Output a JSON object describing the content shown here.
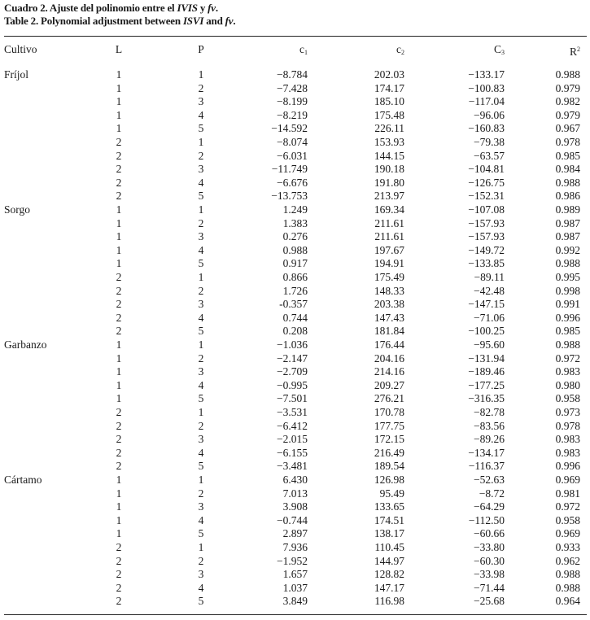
{
  "caption_es": [
    "Cuadro 2. Ajuste del polinomio entre el ",
    "IVIS",
    " y ",
    "fv",
    "."
  ],
  "caption_en": [
    "Table 2. Polynomial adjustment between ",
    "ISVI",
    " and ",
    "fv",
    "."
  ],
  "headers": {
    "cultivo": "Cultivo",
    "l": "L",
    "p": "P",
    "c1": {
      "base": "c",
      "sub": "1"
    },
    "c2": {
      "base": "c",
      "sub": "2"
    },
    "c3": {
      "base": "C",
      "sub": "3"
    },
    "r2": {
      "base": "R",
      "sup": "2"
    }
  },
  "groups": [
    {
      "crop": "Fríjol",
      "rows": [
        [
          "1",
          "1",
          "−8.784",
          "202.03",
          "−133.17",
          "0.988"
        ],
        [
          "1",
          "2",
          "−7.428",
          "174.17",
          "−100.83",
          "0.979"
        ],
        [
          "1",
          "3",
          "−8.199",
          "185.10",
          "−117.04",
          "0.982"
        ],
        [
          "1",
          "4",
          "−8.219",
          "175.48",
          "−96.06",
          "0.979"
        ],
        [
          "1",
          "5",
          "−14.592",
          "226.11",
          "−160.83",
          "0.967"
        ],
        [
          "2",
          "1",
          "−8.074",
          "153.93",
          "−79.38",
          "0.978"
        ],
        [
          "2",
          "2",
          "−6.031",
          "144.15",
          "−63.57",
          "0.985"
        ],
        [
          "2",
          "3",
          "−11.749",
          "190.18",
          "−104.81",
          "0.984"
        ],
        [
          "2",
          "4",
          "−6.676",
          "191.80",
          "−126.75",
          "0.988"
        ],
        [
          "2",
          "5",
          "−13.753",
          "213.97",
          "−152.31",
          "0.986"
        ]
      ]
    },
    {
      "crop": "Sorgo",
      "rows": [
        [
          "1",
          "1",
          "1.249",
          "169.34",
          "−107.08",
          "0.989"
        ],
        [
          "1",
          "2",
          "1.383",
          "211.61",
          "−157.93",
          "0.987"
        ],
        [
          "1",
          "3",
          "0.276",
          "211.61",
          "−157.93",
          "0.987"
        ],
        [
          "1",
          "4",
          "0.988",
          "197.67",
          "−149.72",
          "0.992"
        ],
        [
          "1",
          "5",
          "0.917",
          "194.91",
          "−133.85",
          "0.988"
        ],
        [
          "2",
          "1",
          "0.866",
          "175.49",
          "−89.11",
          "0.995"
        ],
        [
          "2",
          "2",
          "1.726",
          "148.33",
          "−42.48",
          "0.998"
        ],
        [
          "2",
          "3",
          "-0.357",
          "203.38",
          "−147.15",
          "0.991"
        ],
        [
          "2",
          "4",
          "0.744",
          "147.43",
          "−71.06",
          "0.996"
        ],
        [
          "2",
          "5",
          "0.208",
          "181.84",
          "−100.25",
          "0.985"
        ]
      ]
    },
    {
      "crop": "Garbanzo",
      "rows": [
        [
          "1",
          "1",
          "−1.036",
          "176.44",
          "−95.60",
          "0.988"
        ],
        [
          "1",
          "2",
          "−2.147",
          "204.16",
          "−131.94",
          "0.972"
        ],
        [
          "1",
          "3",
          "−2.709",
          "214.16",
          "−189.46",
          "0.983"
        ],
        [
          "1",
          "4",
          "−0.995",
          "209.27",
          "−177.25",
          "0.980"
        ],
        [
          "1",
          "5",
          "−7.501",
          "276.21",
          "−316.35",
          "0.958"
        ],
        [
          "2",
          "1",
          "−3.531",
          "170.78",
          "−82.78",
          "0.973"
        ],
        [
          "2",
          "2",
          "−6.412",
          "177.75",
          "−83.56",
          "0.978"
        ],
        [
          "2",
          "3",
          "−2.015",
          "172.15",
          "−89.26",
          "0.983"
        ],
        [
          "2",
          "4",
          "−6.155",
          "216.49",
          "−134.17",
          "0.983"
        ],
        [
          "2",
          "5",
          "−3.481",
          "189.54",
          "−116.37",
          "0.996"
        ]
      ]
    },
    {
      "crop": "Cártamo",
      "rows": [
        [
          "1",
          "1",
          "6.430",
          "126.98",
          "−52.63",
          "0.969"
        ],
        [
          "1",
          "2",
          "7.013",
          "95.49",
          "−8.72",
          "0.981"
        ],
        [
          "1",
          "3",
          "3.908",
          "133.65",
          "−64.29",
          "0.972"
        ],
        [
          "1",
          "4",
          "−0.744",
          "174.51",
          "−112.50",
          "0.958"
        ],
        [
          "1",
          "5",
          "2.897",
          "138.17",
          "−60.66",
          "0.969"
        ],
        [
          "2",
          "1",
          "7.936",
          "110.45",
          "−33.80",
          "0.933"
        ],
        [
          "2",
          "2",
          "−1.952",
          "144.97",
          "−60.30",
          "0.962"
        ],
        [
          "2",
          "3",
          "1.657",
          "128.82",
          "−33.98",
          "0.988"
        ],
        [
          "2",
          "4",
          "1.037",
          "147.17",
          "−71.44",
          "0.988"
        ],
        [
          "2",
          "5",
          "3.849",
          "116.98",
          "−25.68",
          "0.964"
        ]
      ]
    }
  ]
}
